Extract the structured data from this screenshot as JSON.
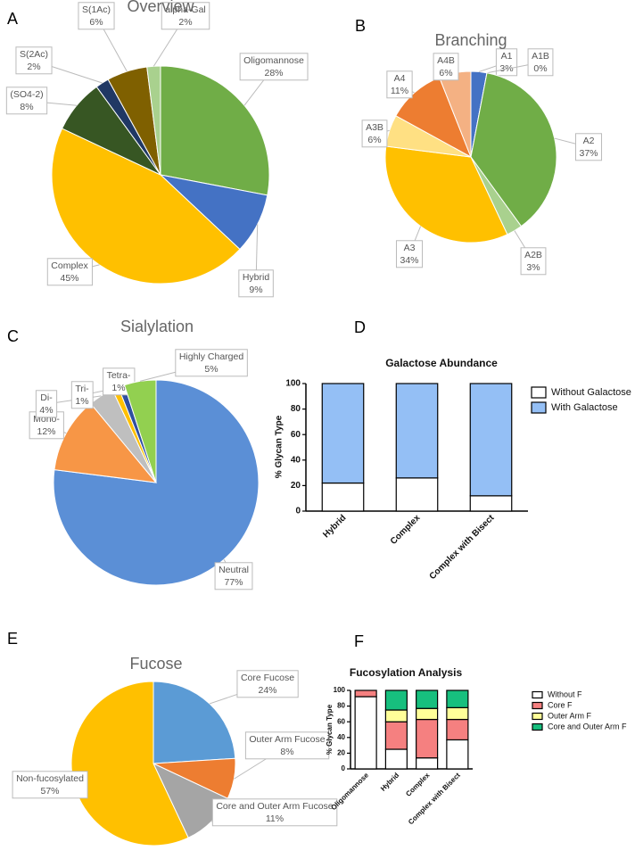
{
  "chart_data": [
    {
      "type": "pie",
      "panel": "A",
      "title": "Overview",
      "categories": [
        "Oligomannose",
        "Hybrid",
        "Complex",
        "(SO4-2)",
        "S(2Ac)",
        "S(1Ac)",
        "alpha-Gal"
      ],
      "values": [
        28,
        9,
        45,
        8,
        2,
        6,
        2
      ],
      "value_labels": [
        "28%",
        "9%",
        "45%",
        "8%",
        "2%",
        "6%",
        "2%"
      ],
      "colors": [
        "#70ad47",
        "#4472c4",
        "#ffc000",
        "#375623",
        "#203864",
        "#7f6000",
        "#a9d18e"
      ]
    },
    {
      "type": "pie",
      "panel": "B",
      "title": "Branching",
      "categories": [
        "A1",
        "A1B",
        "A2",
        "A2B",
        "A3",
        "A3B",
        "A4",
        "A4B"
      ],
      "values": [
        3,
        0,
        37,
        3,
        34,
        6,
        11,
        6
      ],
      "value_labels": [
        "3%",
        "0%",
        "37%",
        "3%",
        "34%",
        "6%",
        "11%",
        "6%"
      ],
      "colors": [
        "#4472c4",
        "#a9c4e8",
        "#70ad47",
        "#a9d18e",
        "#ffc000",
        "#ffe083",
        "#ed7d31",
        "#f4b183"
      ]
    },
    {
      "type": "pie",
      "panel": "C",
      "title": "Sialylation",
      "categories": [
        "Neutral",
        "Mono-",
        "Di-",
        "Tri-",
        "Tetra-",
        "Highly Charged"
      ],
      "values": [
        77,
        12,
        4,
        1,
        1,
        5
      ],
      "value_labels": [
        "77%",
        "12%",
        "4%",
        "1%",
        "1%",
        "5%"
      ],
      "colors": [
        "#5b8fd6",
        "#f79646",
        "#bfbfbf",
        "#ffc000",
        "#2f4fa0",
        "#92d050"
      ]
    },
    {
      "type": "bar",
      "stacked": true,
      "panel": "D",
      "title": "Galactose Abundance",
      "y_label": "% Glycan Type",
      "categories": [
        "Hybrid",
        "Complex",
        "Complex with Bisect"
      ],
      "series": [
        {
          "name": "Without Galactose",
          "color": "#ffffff",
          "values": [
            22,
            26,
            12
          ]
        },
        {
          "name": "With Galactose",
          "color": "#94bff5",
          "values": [
            78,
            74,
            88
          ]
        }
      ],
      "ylim": [
        0,
        100
      ],
      "yticks": [
        0,
        20,
        40,
        60,
        80,
        100
      ],
      "legend": "right"
    },
    {
      "type": "pie",
      "panel": "E",
      "title": "Fucose",
      "categories": [
        "Core Fucose",
        "Outer Arm Fucose",
        "Core and Outer Arm Fucose",
        "Non-fucosylated"
      ],
      "values": [
        24,
        8,
        11,
        57
      ],
      "value_labels": [
        "24%",
        "8%",
        "11%",
        "57%"
      ],
      "colors": [
        "#5b9bd5",
        "#ed7d31",
        "#a5a5a5",
        "#ffc000"
      ]
    },
    {
      "type": "bar",
      "stacked": true,
      "panel": "F",
      "title": "Fucosylation Analysis",
      "y_label": "% Glycan Type",
      "categories": [
        "Oligomannose",
        "Hybrid",
        "Complex",
        "Complex with Bisect"
      ],
      "series": [
        {
          "name": "Without F",
          "color": "#ffffff",
          "values": [
            92,
            25,
            14,
            37
          ]
        },
        {
          "name": "Core F",
          "color": "#f58080",
          "values": [
            8,
            35,
            49,
            26
          ]
        },
        {
          "name": "Outer Arm F",
          "color": "#ffff99",
          "values": [
            0,
            15,
            14,
            15
          ]
        },
        {
          "name": "Core and Outer Arm F",
          "color": "#17bf7e",
          "values": [
            0,
            25,
            23,
            22
          ]
        }
      ],
      "ylim": [
        0,
        100
      ],
      "yticks": [
        0,
        20,
        40,
        60,
        80,
        100
      ],
      "legend": "right"
    }
  ]
}
